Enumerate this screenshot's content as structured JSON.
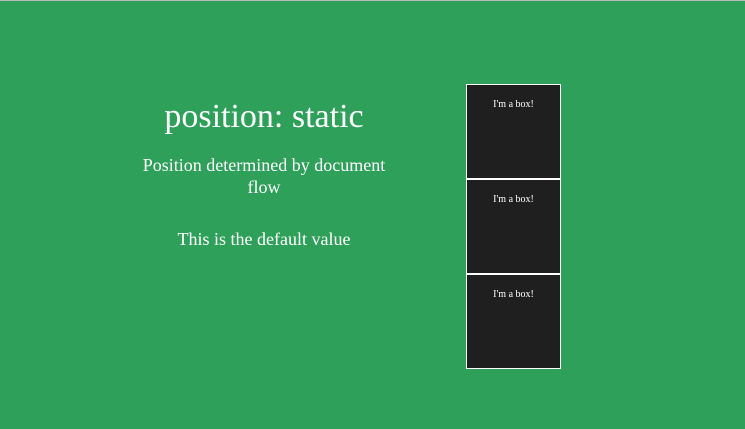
{
  "heading": "position: static",
  "description": "Position determined by document flow",
  "note": "This is the default value",
  "boxes": [
    {
      "label": "I'm a box!"
    },
    {
      "label": "I'm a box!"
    },
    {
      "label": "I'm a box!"
    }
  ],
  "colors": {
    "background": "#2ea059",
    "box": "#1f1f1f",
    "text": "#ffffff"
  }
}
